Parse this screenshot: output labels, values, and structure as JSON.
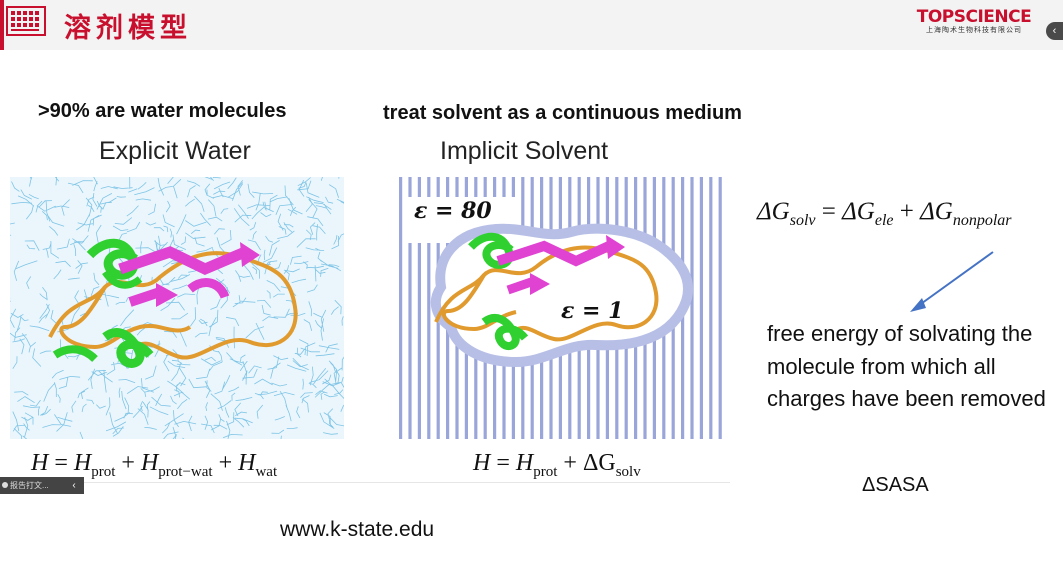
{
  "header": {
    "title": "溶剂模型",
    "brand_name": "TOPSCIENCE",
    "brand_sub": "上海陶术生物科技有限公司",
    "brand_color": "#c8102e",
    "collapse_icon": "chevron-left-icon",
    "collapse_glyph": "‹"
  },
  "slide": {
    "left_heading": ">90% are water molecules",
    "right_heading": "treat solvent as a continuous medium",
    "explicit": {
      "title": "Explicit Water",
      "equation": {
        "lhs": "H",
        "eq": " = ",
        "t1": "H",
        "t1_sub": "prot",
        "plus1": " + ",
        "t2": "H",
        "t2_sub": "prot−wat",
        "plus2": " + ",
        "t3": "H",
        "t3_sub": "wat"
      }
    },
    "implicit": {
      "title": "Implicit Solvent",
      "eps_outer": "ε = 80",
      "eps_inner": "ε = 1",
      "equation": {
        "lhs": "H",
        "eq": " = ",
        "t1": "H",
        "t1_sub": "prot",
        "plus1": " + ",
        "t2": "ΔG",
        "t2_sub": "solv"
      }
    },
    "solvation": {
      "lhs": "ΔG",
      "lhs_sub": "solv",
      "eq": " = ",
      "t1": "ΔG",
      "t1_sub": "ele",
      "plus": " + ",
      "t2": "ΔG",
      "t2_sub": "nonpolar"
    },
    "description": "free energy of solvating the molecule from which all charges have been removed",
    "sasa": "ΔSASA",
    "source": "www.k-state.edu"
  },
  "tray": {
    "label": "报告打文...",
    "button_glyph": "‹"
  },
  "colors": {
    "water": "#7fc4e6",
    "stripe": "#9aa6d9",
    "helix": "#2fd02f",
    "sheet": "#e042d2",
    "coil": "#e09a2e",
    "arrow": "#4472c4"
  }
}
